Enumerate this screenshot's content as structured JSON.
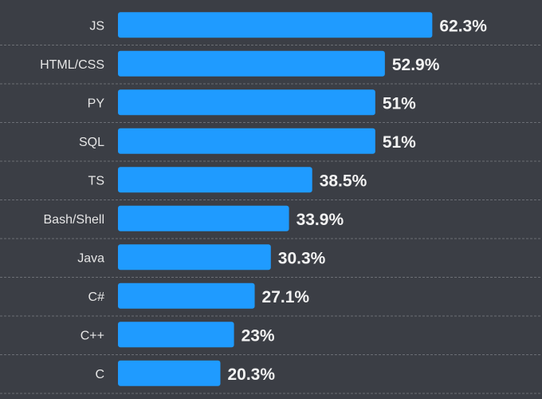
{
  "chart_data": {
    "type": "bar",
    "orientation": "horizontal",
    "title": "",
    "xlabel": "",
    "ylabel": "",
    "xlim": [
      0,
      100
    ],
    "grid": false,
    "categories": [
      "JS",
      "HTML/CSS",
      "PY",
      "SQL",
      "TS",
      "Bash/Shell",
      "Java",
      "C#",
      "C++",
      "C"
    ],
    "values": [
      62.3,
      52.9,
      51,
      51,
      38.5,
      33.9,
      30.3,
      27.1,
      23,
      20.3
    ],
    "value_labels": [
      "62.3%",
      "52.9%",
      "51%",
      "51%",
      "38.5%",
      "33.9%",
      "30.3%",
      "27.1%",
      "23%",
      "20.3%"
    ],
    "colors": {
      "background": "#3b3e45",
      "bar": "#1f9bff",
      "label": "#e6e6e6",
      "value_label": "#f2f2f2",
      "separator": "#6b6e74"
    }
  }
}
